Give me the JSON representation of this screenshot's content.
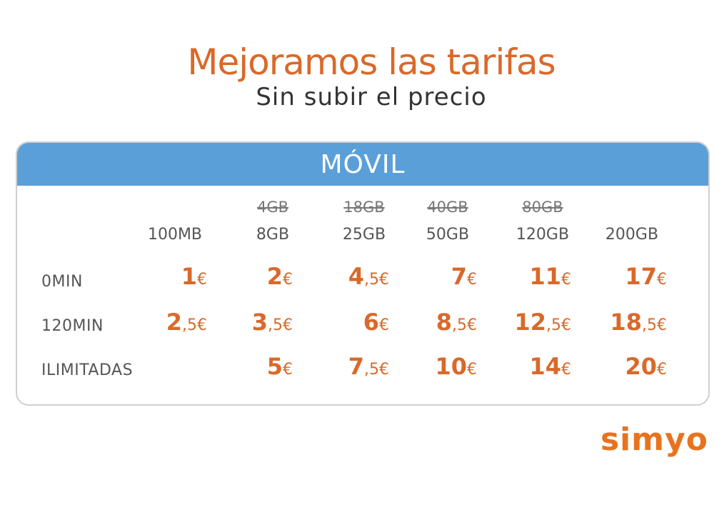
{
  "header": {
    "title": "Mejoramos las tarifas",
    "subtitle": "Sin subir el precio"
  },
  "table": {
    "title": "MÓVIL",
    "columns": [
      {
        "old": null,
        "new": "100MB"
      },
      {
        "old": "4GB",
        "new": "8GB"
      },
      {
        "old": "18GB",
        "new": "25GB"
      },
      {
        "old": "40GB",
        "new": "50GB"
      },
      {
        "old": "80GB",
        "new": "120GB"
      },
      {
        "old": null,
        "new": "200GB"
      }
    ],
    "rows": [
      {
        "label": "0MIN",
        "prices": [
          {
            "amount": "1",
            "decimals": "",
            "unit": "€"
          },
          {
            "amount": "2",
            "decimals": "",
            "unit": "€"
          },
          {
            "amount": "4",
            "decimals": ",5",
            "unit": "€"
          },
          {
            "amount": "7",
            "decimals": "",
            "unit": "€"
          },
          {
            "amount": "11",
            "decimals": "",
            "unit": "€"
          },
          {
            "amount": "17",
            "decimals": "",
            "unit": "€"
          }
        ]
      },
      {
        "label": "120MIN",
        "prices": [
          {
            "amount": "2",
            "decimals": ",5",
            "unit": "€"
          },
          {
            "amount": "3",
            "decimals": ",5",
            "unit": "€"
          },
          {
            "amount": "6",
            "decimals": "",
            "unit": "€"
          },
          {
            "amount": "8",
            "decimals": ",5",
            "unit": "€"
          },
          {
            "amount": "12",
            "decimals": ",5",
            "unit": "€"
          },
          {
            "amount": "18",
            "decimals": ",5",
            "unit": "€"
          }
        ]
      },
      {
        "label": "ILIMITADAS",
        "prices": [
          null,
          {
            "amount": "5",
            "decimals": "",
            "unit": "€"
          },
          {
            "amount": "7",
            "decimals": ",5",
            "unit": "€"
          },
          {
            "amount": "10",
            "decimals": "",
            "unit": "€"
          },
          {
            "amount": "14",
            "decimals": "",
            "unit": "€"
          },
          {
            "amount": "20",
            "decimals": "",
            "unit": "€"
          }
        ]
      }
    ]
  },
  "logo": "simyo"
}
